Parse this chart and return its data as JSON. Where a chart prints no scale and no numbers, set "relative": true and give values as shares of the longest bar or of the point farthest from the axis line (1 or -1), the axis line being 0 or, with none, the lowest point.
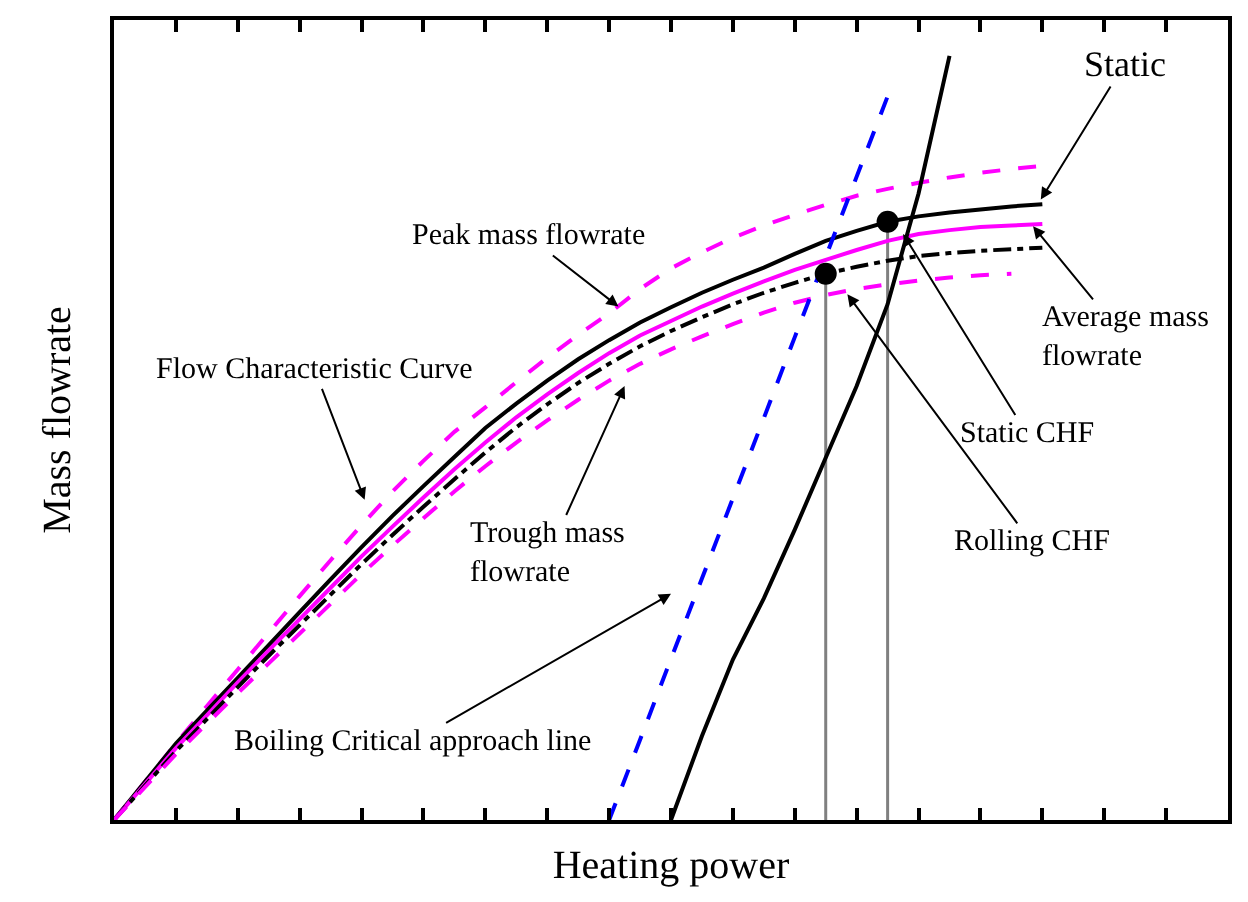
{
  "chart_data": {
    "type": "line",
    "xlabel": "Heating power",
    "ylabel": "Mass flowrate",
    "relative": true,
    "grid": false,
    "tick_labels": false,
    "marker": "none",
    "categories": [
      null,
      null,
      null,
      null,
      null,
      null,
      null,
      null,
      null,
      null,
      null,
      null,
      null,
      null,
      null,
      null,
      null,
      null,
      null,
      null,
      null,
      null,
      null,
      null,
      null,
      null,
      null,
      null,
      null,
      null,
      null,
      null,
      null,
      null,
      null,
      null,
      null
    ],
    "series": [
      {
        "color": "#ff00ff",
        "line_style": "dashed",
        "values": [
          0,
          0.05,
          0.1,
          0.149,
          0.197,
          0.245,
          0.293,
          0.34,
          0.386,
          0.43,
          0.47,
          0.508,
          0.54,
          0.573,
          0.605,
          0.635,
          0.663,
          0.695,
          0.722,
          0.743,
          0.762,
          0.778,
          0.792,
          0.805,
          0.817,
          0.826,
          0.834,
          0.841,
          0.847,
          0.852,
          0.856,
          null,
          null,
          null,
          null,
          null,
          null
        ]
      },
      {
        "color": "#000000",
        "line_style": "solid",
        "values": [
          0,
          0.05,
          0.1,
          0.143,
          0.186,
          0.229,
          0.272,
          0.315,
          0.357,
          0.398,
          0.437,
          0.475,
          0.513,
          0.545,
          0.575,
          0.603,
          0.628,
          0.651,
          0.671,
          0.69,
          0.707,
          0.723,
          0.741,
          0.758,
          0.771,
          0.783,
          0.79,
          0.795,
          0.799,
          0.803,
          0.806,
          null,
          null,
          null,
          null,
          null,
          null
        ]
      },
      {
        "color": "#ff00ff",
        "line_style": "solid",
        "values": [
          0,
          0.047,
          0.094,
          0.137,
          0.18,
          0.222,
          0.263,
          0.304,
          0.345,
          0.384,
          0.422,
          0.459,
          0.494,
          0.527,
          0.557,
          0.585,
          0.611,
          0.634,
          0.653,
          0.672,
          0.689,
          0.705,
          0.72,
          0.733,
          0.746,
          0.758,
          0.767,
          0.772,
          0.776,
          0.778,
          0.78,
          null,
          null,
          null,
          null,
          null,
          null
        ]
      },
      {
        "color": "#000000",
        "line_style": "dashdot",
        "values": [
          0,
          0.045,
          0.09,
          0.132,
          0.174,
          0.215,
          0.255,
          0.295,
          0.335,
          0.373,
          0.41,
          0.446,
          0.481,
          0.514,
          0.544,
          0.572,
          0.597,
          0.62,
          0.64,
          0.658,
          0.675,
          0.69,
          0.703,
          0.715,
          0.724,
          0.732,
          0.738,
          0.742,
          0.745,
          0.747,
          0.749,
          null,
          null,
          null,
          null,
          null,
          null
        ]
      },
      {
        "color": "#ff00ff",
        "line_style": "dashed",
        "values": [
          0,
          0.043,
          0.086,
          0.126,
          0.166,
          0.205,
          0.244,
          0.283,
          0.322,
          0.359,
          0.395,
          0.43,
          0.463,
          0.494,
          0.523,
          0.55,
          0.575,
          0.597,
          0.616,
          0.633,
          0.649,
          0.664,
          0.677,
          0.687,
          0.695,
          0.701,
          0.706,
          0.71,
          0.713,
          0.715,
          null,
          null,
          null,
          null,
          null,
          null,
          null
        ]
      },
      {
        "color": "#0000ff",
        "line_style": "dashed",
        "values": [
          null,
          null,
          null,
          null,
          null,
          null,
          null,
          null,
          null,
          null,
          null,
          null,
          null,
          null,
          null,
          null,
          0,
          0.105,
          0.211,
          0.316,
          0.421,
          0.526,
          0.632,
          0.737,
          0.842,
          0.947,
          null,
          null,
          null,
          null,
          null,
          null,
          null,
          null,
          null,
          null,
          null
        ]
      },
      {
        "color": "#000000",
        "line_style": "solid",
        "values": [
          null,
          null,
          null,
          null,
          null,
          null,
          null,
          null,
          null,
          null,
          null,
          null,
          null,
          null,
          null,
          null,
          null,
          null,
          0,
          0.11,
          0.21,
          0.29,
          0.38,
          0.474,
          0.568,
          0.675,
          0.82,
          1.0,
          null,
          null,
          null,
          null,
          null,
          null,
          null,
          null,
          null
        ]
      },
      {
        "marker": "circle",
        "color": "#000000",
        "values": [
          null,
          null,
          null,
          null,
          null,
          null,
          null,
          null,
          null,
          null,
          null,
          null,
          null,
          null,
          null,
          null,
          null,
          null,
          null,
          null,
          null,
          null,
          null,
          0.715,
          null,
          0.783,
          null,
          null,
          null,
          null,
          null,
          null,
          null,
          null,
          null,
          null,
          null
        ]
      }
    ],
    "annotations": [
      "Static",
      "Peak mass flowrate",
      "Flow Characteristic Curve",
      "Trough mass\nflowrate",
      "Boiling Critical approach line",
      "Average mass\nflowrate",
      "Static CHF",
      "Rolling CHF"
    ]
  }
}
